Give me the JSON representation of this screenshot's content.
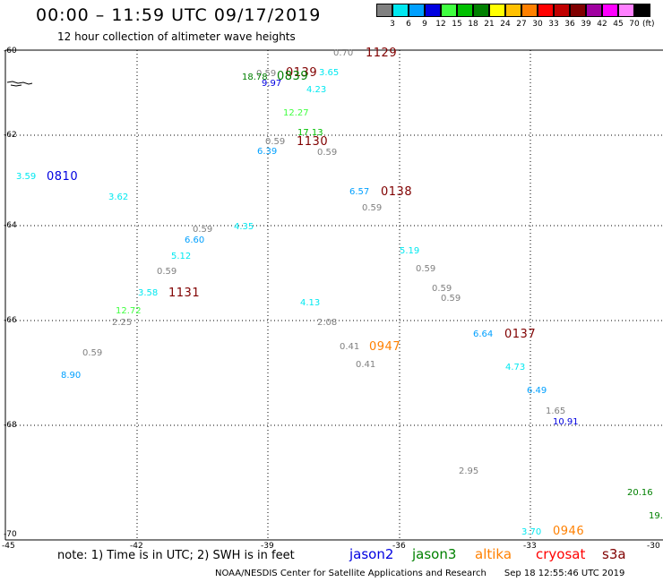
{
  "title": "00:00 – 11:59 UTC 09/17/2019",
  "subtitle": "12 hour collection of altimeter wave heights",
  "legend": {
    "unit": "(ft)",
    "bins": [
      {
        "label": "3",
        "color": "#808080"
      },
      {
        "label": "6",
        "color": "#00e8f0"
      },
      {
        "label": "9",
        "color": "#00a0ff"
      },
      {
        "label": "12",
        "color": "#0000e0"
      },
      {
        "label": "15",
        "color": "#40ff40"
      },
      {
        "label": "18",
        "color": "#00c000"
      },
      {
        "label": "21",
        "color": "#008000"
      },
      {
        "label": "24",
        "color": "#ffff00"
      },
      {
        "label": "27",
        "color": "#ffc000"
      },
      {
        "label": "30",
        "color": "#ff8000"
      },
      {
        "label": "33",
        "color": "#ff0000"
      },
      {
        "label": "36",
        "color": "#c00000"
      },
      {
        "label": "39",
        "color": "#800000"
      },
      {
        "label": "42",
        "color": "#a000a0"
      },
      {
        "label": "45",
        "color": "#ff00ff"
      },
      {
        "label": "70",
        "color": "#ff80ff"
      },
      {
        "label": "",
        "color": "#000000"
      }
    ]
  },
  "axes": {
    "lat_labels": [
      "-60",
      "-62",
      "-64",
      "-66",
      "-68",
      "-70"
    ],
    "lon_labels": [
      "-45",
      "-42",
      "-39",
      "-36",
      "-33",
      "-30"
    ]
  },
  "wave_heights": [
    {
      "v": "0.70",
      "c": "#808080"
    },
    {
      "v": "0.59",
      "c": "#808080"
    },
    {
      "v": "18.78",
      "c": "#008000"
    },
    {
      "v": "9.97",
      "c": "#0000e0"
    },
    {
      "v": "3.65",
      "c": "#00e8f0"
    },
    {
      "v": "4.23",
      "c": "#00e8f0"
    },
    {
      "v": "12.27",
      "c": "#40ff40"
    },
    {
      "v": "17.13",
      "c": "#00c000"
    },
    {
      "v": "0.59",
      "c": "#808080"
    },
    {
      "v": "6.39",
      "c": "#00a0ff"
    },
    {
      "v": "0.59",
      "c": "#808080"
    },
    {
      "v": "3.59",
      "c": "#00e8f0"
    },
    {
      "v": "3.62",
      "c": "#00e8f0"
    },
    {
      "v": "6.57",
      "c": "#00a0ff"
    },
    {
      "v": "0.59",
      "c": "#808080"
    },
    {
      "v": "0.59",
      "c": "#808080"
    },
    {
      "v": "4.35",
      "c": "#00e8f0"
    },
    {
      "v": "6.60",
      "c": "#00a0ff"
    },
    {
      "v": "5.12",
      "c": "#00e8f0"
    },
    {
      "v": "0.59",
      "c": "#808080"
    },
    {
      "v": "5.19",
      "c": "#00e8f0"
    },
    {
      "v": "0.59",
      "c": "#808080"
    },
    {
      "v": "0.59",
      "c": "#808080"
    },
    {
      "v": "0.59",
      "c": "#808080"
    },
    {
      "v": "3.58",
      "c": "#00e8f0"
    },
    {
      "v": "4.13",
      "c": "#00e8f0"
    },
    {
      "v": "12.72",
      "c": "#40ff40"
    },
    {
      "v": "2.25",
      "c": "#808080"
    },
    {
      "v": "2.08",
      "c": "#808080"
    },
    {
      "v": "6.64",
      "c": "#00a0ff"
    },
    {
      "v": "0.41",
      "c": "#808080"
    },
    {
      "v": "0.59",
      "c": "#808080"
    },
    {
      "v": "0.41",
      "c": "#808080"
    },
    {
      "v": "4.73",
      "c": "#00e8f0"
    },
    {
      "v": "8.90",
      "c": "#00a0ff"
    },
    {
      "v": "6.49",
      "c": "#00a0ff"
    },
    {
      "v": "1.65",
      "c": "#808080"
    },
    {
      "v": "10.91",
      "c": "#0000e0"
    },
    {
      "v": "2.95",
      "c": "#808080"
    },
    {
      "v": "20.16",
      "c": "#008000"
    },
    {
      "v": "19.",
      "c": "#008000"
    },
    {
      "v": "3.70",
      "c": "#00e8f0"
    }
  ],
  "pass_times": [
    {
      "t": "1129",
      "c": "#800000"
    },
    {
      "t": "0139",
      "c": "#800000"
    },
    {
      "t": "0839",
      "c": "#008000"
    },
    {
      "t": "1130",
      "c": "#800000"
    },
    {
      "t": "0810",
      "c": "#0000e0"
    },
    {
      "t": "0138",
      "c": "#800000"
    },
    {
      "t": "1131",
      "c": "#800000"
    },
    {
      "t": "0137",
      "c": "#800000"
    },
    {
      "t": "0947",
      "c": "#ff8000"
    },
    {
      "t": "0946",
      "c": "#ff8000"
    }
  ],
  "note": "note:  1) Time is in UTC;  2) SWH is in feet",
  "satellites": [
    {
      "name": "jason2",
      "color": "#0000e0"
    },
    {
      "name": "jason3",
      "color": "#008000"
    },
    {
      "name": "altika",
      "color": "#ff8000"
    },
    {
      "name": "cryosat",
      "color": "#ff0000"
    },
    {
      "name": "s3a",
      "color": "#800000"
    }
  ],
  "footer": {
    "credit": "NOAA/NESDIS Center for Satellite Applications and Research",
    "date": "Sep 18 12:55:46 UTC 2019"
  }
}
